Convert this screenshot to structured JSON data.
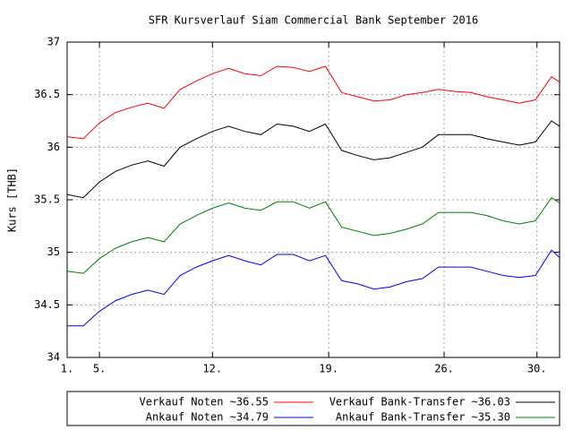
{
  "chart_data": {
    "type": "line",
    "title": "SFR Kursverlauf Siam Commercial Bank September 2016",
    "ylabel": "Kurs [THB]",
    "x": [
      0,
      1,
      2,
      3,
      4,
      5,
      6,
      7,
      8,
      9,
      10,
      11,
      12,
      13,
      14,
      15,
      16,
      17,
      18,
      19,
      20,
      21,
      22,
      23,
      24,
      25,
      26,
      27,
      28,
      29,
      30,
      30.5
    ],
    "series": [
      {
        "name": "Verkauf Noten ~36.55",
        "color": "#ff0000",
        "values": [
          36.1,
          36.08,
          36.23,
          36.33,
          36.38,
          36.42,
          36.37,
          36.55,
          36.63,
          36.7,
          36.75,
          36.7,
          36.68,
          36.77,
          36.76,
          36.72,
          36.77,
          36.52,
          36.48,
          36.44,
          36.45,
          36.5,
          36.52,
          36.55,
          36.53,
          36.52,
          36.48,
          36.45,
          36.42,
          36.45,
          36.67,
          36.62
        ]
      },
      {
        "name": "Verkauf Bank-Transfer ~36.03",
        "color": "#000000",
        "values": [
          35.55,
          35.52,
          35.67,
          35.77,
          35.83,
          35.87,
          35.82,
          36.0,
          36.08,
          36.15,
          36.2,
          36.15,
          36.12,
          36.22,
          36.2,
          36.15,
          36.22,
          35.97,
          35.92,
          35.88,
          35.9,
          35.95,
          36.0,
          36.12,
          36.12,
          36.12,
          36.08,
          36.05,
          36.02,
          36.05,
          36.25,
          36.2
        ]
      },
      {
        "name": "Ankauf Noten ~34.79",
        "color": "#0000ff",
        "values": [
          34.3,
          34.3,
          34.44,
          34.54,
          34.6,
          34.64,
          34.6,
          34.78,
          34.86,
          34.92,
          34.97,
          34.92,
          34.88,
          34.98,
          34.98,
          34.92,
          34.97,
          34.73,
          34.7,
          34.65,
          34.67,
          34.72,
          34.75,
          34.86,
          34.86,
          34.86,
          34.82,
          34.78,
          34.76,
          34.78,
          35.02,
          34.95
        ]
      },
      {
        "name": "Ankauf Bank-Transfer ~35.30",
        "color": "#008000",
        "values": [
          34.82,
          34.8,
          34.94,
          35.04,
          35.1,
          35.14,
          35.1,
          35.27,
          35.35,
          35.42,
          35.47,
          35.42,
          35.4,
          35.48,
          35.48,
          35.42,
          35.48,
          35.24,
          35.2,
          35.16,
          35.18,
          35.22,
          35.27,
          35.38,
          35.38,
          35.38,
          35.35,
          35.3,
          35.27,
          35.3,
          35.52,
          35.47
        ]
      }
    ],
    "xlim": [
      0,
      30.5
    ],
    "xticks": [
      {
        "value": 0,
        "label": "1."
      },
      {
        "value": 2,
        "label": "5."
      },
      {
        "value": 9,
        "label": "12."
      },
      {
        "value": 16.2,
        "label": "19."
      },
      {
        "value": 23.35,
        "label": "26."
      },
      {
        "value": 29.1,
        "label": "30."
      }
    ],
    "ylim": [
      34,
      37
    ],
    "yticks": [
      34,
      34.5,
      35,
      35.5,
      36,
      36.5,
      37
    ],
    "grid": true
  }
}
